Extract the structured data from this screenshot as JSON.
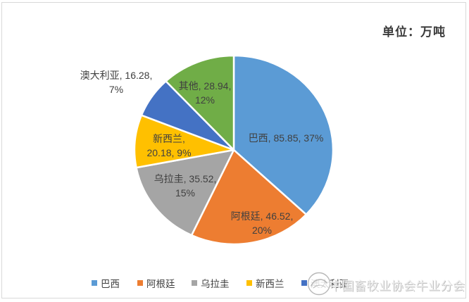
{
  "header": {
    "unit_label": "单位：万吨"
  },
  "chart_data": {
    "type": "pie",
    "title": "",
    "unit": "万吨",
    "categories": [
      "巴西",
      "阿根廷",
      "乌拉圭",
      "新西兰",
      "澳大利亚",
      "其他"
    ],
    "values": [
      85.85,
      46.52,
      35.52,
      20.18,
      16.28,
      28.94
    ],
    "percents": [
      37,
      20,
      15,
      9,
      7,
      12
    ],
    "colors": [
      "#5B9BD5",
      "#ED7D31",
      "#A5A5A5",
      "#FFC000",
      "#4472C4",
      "#70AD47"
    ],
    "start_angle_deg": 0,
    "direction": "clockwise",
    "slice_labels": [
      [
        "巴西, 85.85, 37%"
      ],
      [
        "阿根廷, 46.52,",
        "20%"
      ],
      [
        "乌拉圭, 35.52,",
        "15%"
      ],
      [
        "新西兰,",
        "20.18, 9%"
      ],
      [
        "澳大利亚, 16.28,",
        "7%"
      ],
      [
        "其他, 28.94,",
        "12%"
      ]
    ],
    "legend": {
      "position": "bottom",
      "entries": [
        "巴西",
        "阿根廷",
        "乌拉圭",
        "新西兰",
        "澳大利亚"
      ]
    }
  },
  "watermark": {
    "text": "中国畜牧业协会牛业分会"
  }
}
